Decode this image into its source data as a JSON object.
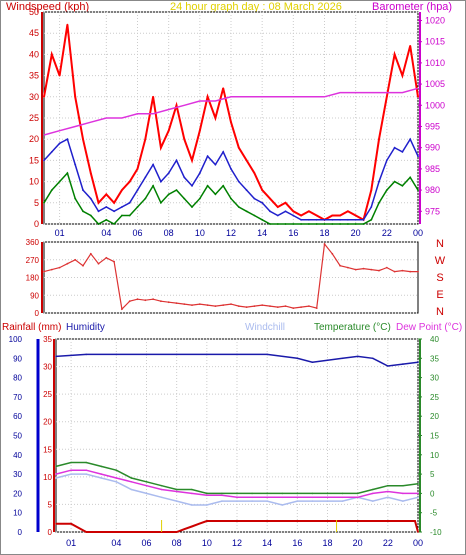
{
  "chart_data": [
    {
      "type": "line",
      "title": "24 hour graph day : 08 March 2026",
      "ylabel": "Windspeed (kph)",
      "y2label": "Barometer (hpa)",
      "colors": {
        "title": "#e0d000",
        "left": "#cc0000",
        "right": "#cc00cc",
        "gust": "#ff0000",
        "avg": "#2020cc",
        "low": "#008000",
        "baro": "#dd33dd"
      },
      "x": [
        "01",
        "04",
        "06",
        "08",
        "10",
        "12",
        "14",
        "16",
        "18",
        "20",
        "22",
        "00"
      ],
      "ylim": [
        0,
        50
      ],
      "yticks": [
        0,
        5,
        10,
        15,
        20,
        25,
        30,
        35,
        40,
        45,
        50
      ],
      "y2lim": [
        972,
        1022
      ],
      "y2ticks": [
        975,
        980,
        985,
        990,
        995,
        1000,
        1005,
        1010,
        1015,
        1020
      ],
      "series": [
        {
          "name": "gust",
          "x": [
            0,
            0.5,
            1,
            1.5,
            2,
            2.5,
            3,
            3.5,
            4,
            4.5,
            5,
            5.5,
            6,
            6.5,
            7,
            7.5,
            8,
            8.5,
            9,
            9.5,
            10,
            10.5,
            11,
            11.5,
            12,
            12.5,
            13,
            13.5,
            14,
            14.5,
            15,
            15.5,
            16,
            16.5,
            17,
            17.5,
            18,
            18.5,
            19,
            19.5,
            20,
            20.5,
            21,
            21.5,
            22,
            22.5,
            23,
            23.5,
            24
          ],
          "values": [
            30,
            40,
            35,
            47,
            30,
            20,
            12,
            5,
            7,
            5,
            8,
            10,
            13,
            20,
            30,
            18,
            22,
            28,
            20,
            15,
            22,
            30,
            25,
            32,
            24,
            18,
            15,
            12,
            8,
            6,
            4,
            5,
            3,
            2,
            3,
            2,
            1,
            2,
            2,
            3,
            2,
            1,
            8,
            20,
            30,
            40,
            35,
            42,
            30
          ]
        },
        {
          "name": "avg",
          "x": [
            0,
            0.5,
            1,
            1.5,
            2,
            2.5,
            3,
            3.5,
            4,
            4.5,
            5,
            5.5,
            6,
            6.5,
            7,
            7.5,
            8,
            8.5,
            9,
            9.5,
            10,
            10.5,
            11,
            11.5,
            12,
            12.5,
            13,
            13.5,
            14,
            14.5,
            15,
            15.5,
            16,
            16.5,
            17,
            17.5,
            18,
            18.5,
            19,
            19.5,
            20,
            20.5,
            21,
            21.5,
            22,
            22.5,
            23,
            23.5,
            24
          ],
          "values": [
            15,
            17,
            19,
            20,
            14,
            8,
            6,
            3,
            4,
            3,
            4,
            5,
            8,
            11,
            14,
            10,
            12,
            15,
            11,
            9,
            12,
            16,
            14,
            17,
            13,
            10,
            8,
            6,
            5,
            3,
            2,
            3,
            2,
            1,
            1,
            1,
            1,
            1,
            1,
            1,
            1,
            1,
            4,
            10,
            15,
            18,
            17,
            20,
            16
          ]
        },
        {
          "name": "low",
          "x": [
            0,
            0.5,
            1,
            1.5,
            2,
            2.5,
            3,
            3.5,
            4,
            4.5,
            5,
            5.5,
            6,
            6.5,
            7,
            7.5,
            8,
            8.5,
            9,
            9.5,
            10,
            10.5,
            11,
            11.5,
            12,
            12.5,
            13,
            13.5,
            14,
            14.5,
            15,
            15.5,
            16,
            16.5,
            17,
            17.5,
            18,
            18.5,
            19,
            19.5,
            20,
            20.5,
            21,
            21.5,
            22,
            22.5,
            23,
            23.5,
            24
          ],
          "values": [
            5,
            8,
            10,
            12,
            6,
            3,
            2,
            0,
            1,
            0,
            2,
            2,
            4,
            6,
            9,
            5,
            7,
            8,
            6,
            4,
            6,
            9,
            7,
            9,
            6,
            4,
            3,
            2,
            1,
            0,
            0,
            0,
            0,
            0,
            0,
            0,
            0,
            0,
            0,
            0,
            0,
            0,
            1,
            5,
            8,
            10,
            9,
            11,
            8
          ]
        },
        {
          "name": "baro",
          "axis": "right",
          "x": [
            0,
            1,
            2,
            3,
            4,
            5,
            6,
            7,
            8,
            9,
            10,
            11,
            12,
            13,
            14,
            15,
            16,
            17,
            18,
            19,
            20,
            21,
            22,
            23,
            24
          ],
          "values": [
            993,
            994,
            995,
            996,
            997,
            997,
            998,
            998,
            999,
            1000,
            1001,
            1001,
            1002,
            1002,
            1002,
            1002,
            1002,
            1002,
            1002,
            1003,
            1003,
            1003,
            1003,
            1003,
            1004
          ]
        }
      ]
    },
    {
      "type": "line",
      "ylabel": "Wind direction",
      "compass": [
        "N",
        "W",
        "S",
        "E",
        "N"
      ],
      "colors": {
        "line": "#dd3333",
        "compass": "#cc0000"
      },
      "x": [
        "01",
        "04",
        "06",
        "08",
        "10",
        "12",
        "14",
        "16",
        "18",
        "20",
        "22",
        "00"
      ],
      "ylim": [
        0,
        360
      ],
      "yticks": [
        0,
        90,
        180,
        270,
        360
      ],
      "ytick_labels": [
        "0",
        "90",
        "180",
        "270",
        "360"
      ],
      "series": [
        {
          "name": "direction",
          "x": [
            0,
            0.5,
            1,
            1.5,
            2,
            2.5,
            3,
            3.5,
            4,
            4.5,
            5,
            5.5,
            6,
            6.5,
            7,
            7.5,
            8,
            8.5,
            9,
            9.5,
            10,
            10.5,
            11,
            11.5,
            12,
            12.5,
            13,
            13.5,
            14,
            14.5,
            15,
            15.5,
            16,
            16.5,
            17,
            17.5,
            18,
            18.5,
            19,
            19.5,
            20,
            20.5,
            21,
            21.5,
            22,
            22.5,
            23,
            23.5,
            24
          ],
          "values": [
            210,
            220,
            230,
            250,
            270,
            240,
            300,
            250,
            280,
            260,
            20,
            60,
            70,
            65,
            70,
            60,
            55,
            50,
            45,
            40,
            45,
            40,
            35,
            40,
            45,
            35,
            30,
            35,
            40,
            35,
            30,
            35,
            25,
            30,
            35,
            25,
            350,
            300,
            240,
            230,
            220,
            225,
            220,
            215,
            230,
            210,
            215,
            210,
            210
          ]
        }
      ]
    },
    {
      "type": "line",
      "legend": [
        "Rainfall (mm)",
        "Humidity",
        "Windchill",
        "Temperature (°C)",
        "Dew Point (°C)"
      ],
      "colors": {
        "rain": "#cc0000",
        "humidity": "#1a1aaa",
        "windchill": "#aabbee",
        "temperature": "#2a8a2a",
        "dewpoint": "#dd33dd",
        "rain_axis": "#0000cc"
      },
      "x": [
        "01",
        "04",
        "06",
        "08",
        "10",
        "12",
        "14",
        "16",
        "18",
        "20",
        "22",
        "00"
      ],
      "humidity_ticks": [
        0,
        10,
        20,
        30,
        40,
        50,
        60,
        70,
        80,
        90,
        100
      ],
      "rain_ticks": [
        0,
        5,
        10,
        15,
        20,
        25,
        30,
        35
      ],
      "temp_ticks": [
        -10,
        -5,
        0,
        5,
        10,
        15,
        20,
        25,
        30,
        35,
        40
      ],
      "series": [
        {
          "name": "humidity",
          "x": [
            0,
            2,
            4,
            6,
            8,
            10,
            12,
            14,
            16,
            17,
            18,
            19,
            20,
            21,
            22,
            23,
            24
          ],
          "values": [
            91,
            92,
            92,
            92,
            92,
            92,
            92,
            92,
            90,
            88,
            89,
            90,
            91,
            90,
            86,
            87,
            88
          ]
        },
        {
          "name": "temperature",
          "x": [
            0,
            1,
            2,
            3,
            4,
            5,
            6,
            7,
            8,
            9,
            10,
            11,
            12,
            13,
            14,
            15,
            16,
            17,
            18,
            19,
            20,
            21,
            22,
            23,
            24
          ],
          "values": [
            7,
            8,
            8,
            7,
            6,
            4,
            3,
            2,
            1,
            1,
            0,
            0,
            0,
            0,
            0,
            0,
            0,
            0,
            0,
            0,
            0,
            1,
            2,
            2,
            2.5
          ]
        },
        {
          "name": "windchill",
          "x": [
            0,
            1,
            2,
            3,
            4,
            5,
            6,
            7,
            8,
            9,
            10,
            11,
            12,
            13,
            14,
            15,
            16,
            17,
            18,
            19,
            20,
            21,
            22,
            23,
            24
          ],
          "values": [
            4,
            5,
            5,
            4,
            3,
            1,
            0,
            -1,
            -2,
            -3,
            -3,
            -2,
            -2,
            -2,
            -2,
            -3,
            -2,
            -2,
            -2,
            -2,
            -1,
            -2,
            -1,
            -2,
            -1
          ]
        },
        {
          "name": "dewpoint",
          "x": [
            0,
            1,
            2,
            3,
            4,
            5,
            6,
            7,
            8,
            9,
            10,
            11,
            12,
            13,
            14,
            15,
            16,
            17,
            18,
            19,
            20,
            21,
            22,
            23,
            24
          ],
          "values": [
            5,
            6,
            6,
            5,
            4,
            3,
            2,
            1,
            0.5,
            0,
            -0.5,
            -0.5,
            -1,
            -1,
            -1,
            -1,
            -1,
            -1,
            -1,
            -1,
            -1,
            0,
            0.5,
            0,
            0
          ]
        },
        {
          "name": "rainfall",
          "x": [
            0,
            1,
            2,
            6,
            8,
            8.5,
            9,
            9.5,
            10,
            11,
            14,
            16,
            18,
            20,
            22,
            23.8,
            24
          ],
          "values": [
            1.5,
            1.5,
            0,
            0,
            0,
            0.5,
            1,
            1.5,
            2,
            2,
            2,
            2,
            2,
            2,
            2,
            2,
            0
          ]
        },
        {
          "name": "rain_rate",
          "x": [
            7,
            18.6
          ],
          "values": [
            1,
            1
          ]
        }
      ]
    }
  ]
}
